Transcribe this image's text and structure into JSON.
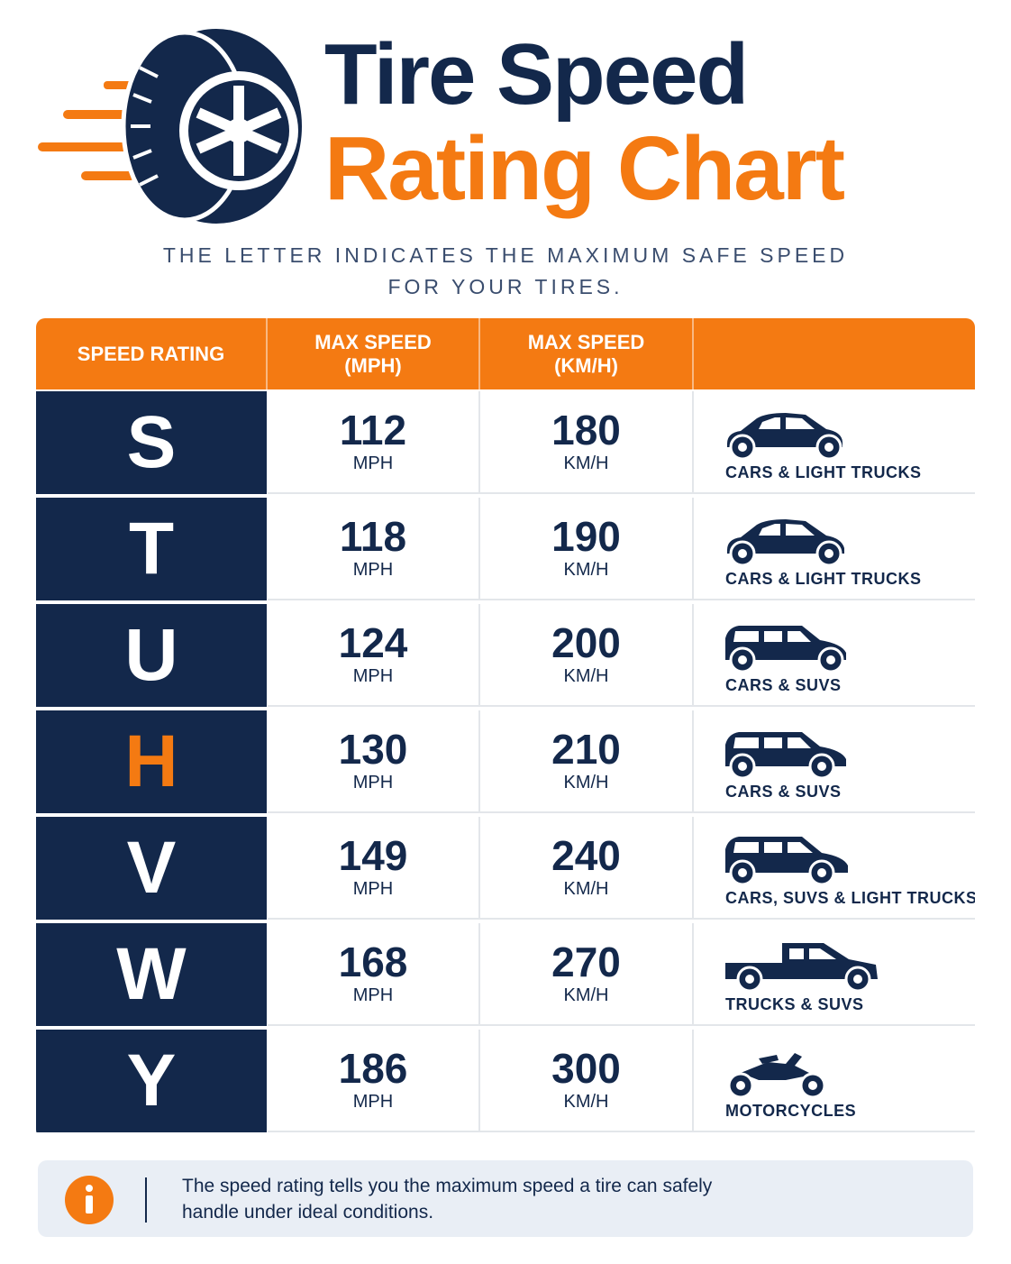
{
  "header": {
    "title_line1": "Tire Speed",
    "title_line2": "Rating Chart",
    "subtitle": [
      "THE LETTER INDICATES THE MAXIMUM SAFE SPEED",
      "FOR YOUR TIRES."
    ]
  },
  "table": {
    "headers": [
      [
        "SPEED RATING"
      ],
      [
        "MAX SPEED",
        "(MPH)"
      ],
      [
        "MAX SPEED",
        "(KM/H)"
      ]
    ],
    "rows": [
      {
        "rating": "S",
        "color": "#ffffff",
        "mph": 112,
        "mph_unit": "MPH",
        "kmh": 180,
        "kmh_unit": "KM/H",
        "vehicle": "CARS & LIGHT TRUCKS"
      },
      {
        "rating": "T",
        "color": "#ffffff",
        "mph": 118,
        "mph_unit": "MPH",
        "kmh": 190,
        "kmh_unit": "KM/H",
        "vehicle": "CARS & LIGHT TRUCKS"
      },
      {
        "rating": "U",
        "color": "#ffffff",
        "mph": 124,
        "mph_unit": "MPH",
        "kmh": 200,
        "kmh_unit": "KM/H",
        "vehicle": "CARS & SUVS"
      },
      {
        "rating": "H",
        "color": "#f47a12",
        "mph": 130,
        "mph_unit": "MPH",
        "kmh": 210,
        "kmh_unit": "KM/H",
        "vehicle": "CARS & SUVS"
      },
      {
        "rating": "V",
        "color": "#ffffff",
        "mph": 149,
        "mph_unit": "MPH",
        "kmh": 240,
        "kmh_unit": "KM/H",
        "vehicle": "CARS, SUVS & LIGHT TRUCKS"
      },
      {
        "rating": "W",
        "color": "#ffffff",
        "mph": 168,
        "mph_unit": "MPH",
        "kmh": 270,
        "kmh_unit": "KM/H",
        "vehicle": "TRUCKS & SUVS"
      },
      {
        "rating": "Y",
        "color": "#ffffff",
        "mph": 186,
        "mph_unit": "MPH",
        "kmh": 300,
        "kmh_unit": "KM/H",
        "vehicle": "MOTORCYCLES"
      }
    ]
  },
  "note": {
    "lines": [
      "The speed rating tells you the maximum speed a tire can safely",
      "handle under ideal conditions."
    ]
  }
}
